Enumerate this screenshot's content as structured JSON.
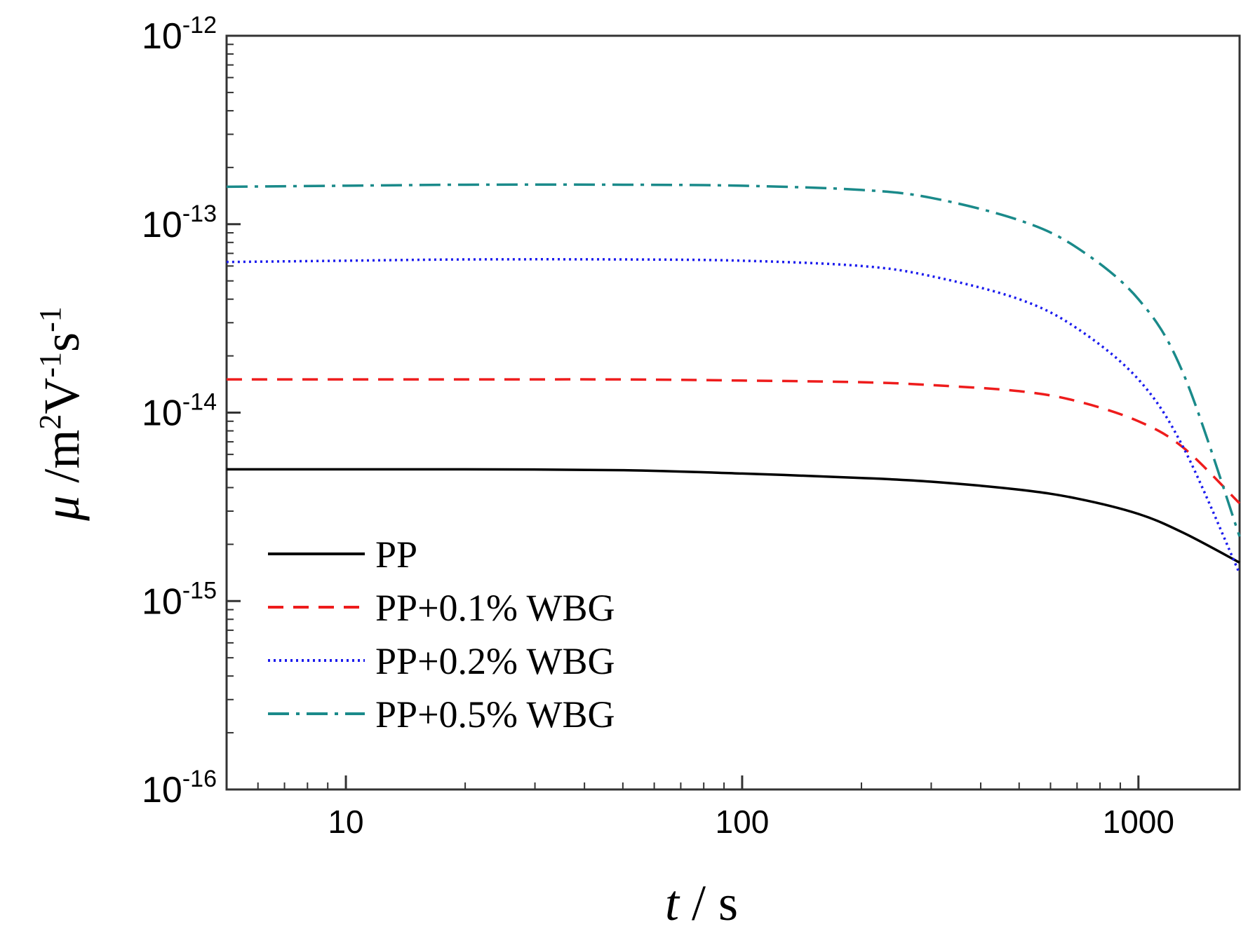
{
  "chart_data": {
    "type": "line",
    "xscale": "log",
    "yscale": "log",
    "xlim": [
      5,
      1800
    ],
    "ylim": [
      1e-16,
      1e-12
    ],
    "x_ticks": [
      {
        "value": 10,
        "label": "10"
      },
      {
        "value": 100,
        "label": "100"
      },
      {
        "value": 1000,
        "label": "1000"
      }
    ],
    "y_ticks": [
      {
        "value": 1e-12,
        "base": "10",
        "exp": "-12"
      },
      {
        "value": 1e-13,
        "base": "10",
        "exp": "-13"
      },
      {
        "value": 1e-14,
        "base": "10",
        "exp": "-14"
      },
      {
        "value": 1e-15,
        "base": "10",
        "exp": "-15"
      },
      {
        "value": 1e-16,
        "base": "10",
        "exp": "-16"
      }
    ],
    "xlabel": {
      "var": "t",
      "sep": " / ",
      "unit": "s"
    },
    "ylabel": {
      "var": "μ",
      "sep": " /",
      "m": "m",
      "m_exp": "2",
      "V": "V",
      "V_exp": "-1",
      "s": "s",
      "s_exp": "-1"
    },
    "grid": false,
    "legend_position": "lower-left",
    "series": [
      {
        "name": "PP",
        "color": "#000000",
        "style": "solid",
        "x": [
          5,
          10,
          20,
          50,
          100,
          200,
          300,
          500,
          700,
          1000,
          1300,
          1800
        ],
        "y": [
          5e-15,
          5e-15,
          5e-15,
          4.95e-15,
          4.75e-15,
          4.5e-15,
          4.3e-15,
          3.9e-15,
          3.5e-15,
          2.9e-15,
          2.3e-15,
          1.6e-15
        ]
      },
      {
        "name": "PP+0.1% WBG",
        "color": "#ee1c1c",
        "style": "dashed",
        "x": [
          5,
          10,
          20,
          50,
          100,
          200,
          300,
          500,
          700,
          1000,
          1300,
          1800
        ],
        "y": [
          1.5e-14,
          1.5e-14,
          1.5e-14,
          1.5e-14,
          1.48e-14,
          1.45e-14,
          1.4e-14,
          1.3e-14,
          1.15e-14,
          9e-15,
          6.5e-15,
          3.3e-15
        ]
      },
      {
        "name": "PP+0.2% WBG",
        "color": "#1c1cee",
        "style": "dotted",
        "x": [
          5,
          10,
          20,
          50,
          100,
          200,
          300,
          500,
          700,
          1000,
          1300,
          1800
        ],
        "y": [
          6.3e-14,
          6.4e-14,
          6.5e-14,
          6.5e-14,
          6.4e-14,
          6e-14,
          5.3e-14,
          4e-14,
          2.8e-14,
          1.5e-14,
          6.5e-15,
          1.4e-15
        ]
      },
      {
        "name": "PP+0.5% WBG",
        "color": "#1a8a8a",
        "style": "dashdot",
        "x": [
          5,
          10,
          20,
          50,
          100,
          200,
          300,
          500,
          700,
          1000,
          1300,
          1800
        ],
        "y": [
          1.58e-13,
          1.6e-13,
          1.62e-13,
          1.62e-13,
          1.6e-13,
          1.52e-13,
          1.38e-13,
          1.05e-13,
          7.5e-14,
          4e-14,
          1.6e-14,
          2.2e-15
        ]
      }
    ]
  }
}
